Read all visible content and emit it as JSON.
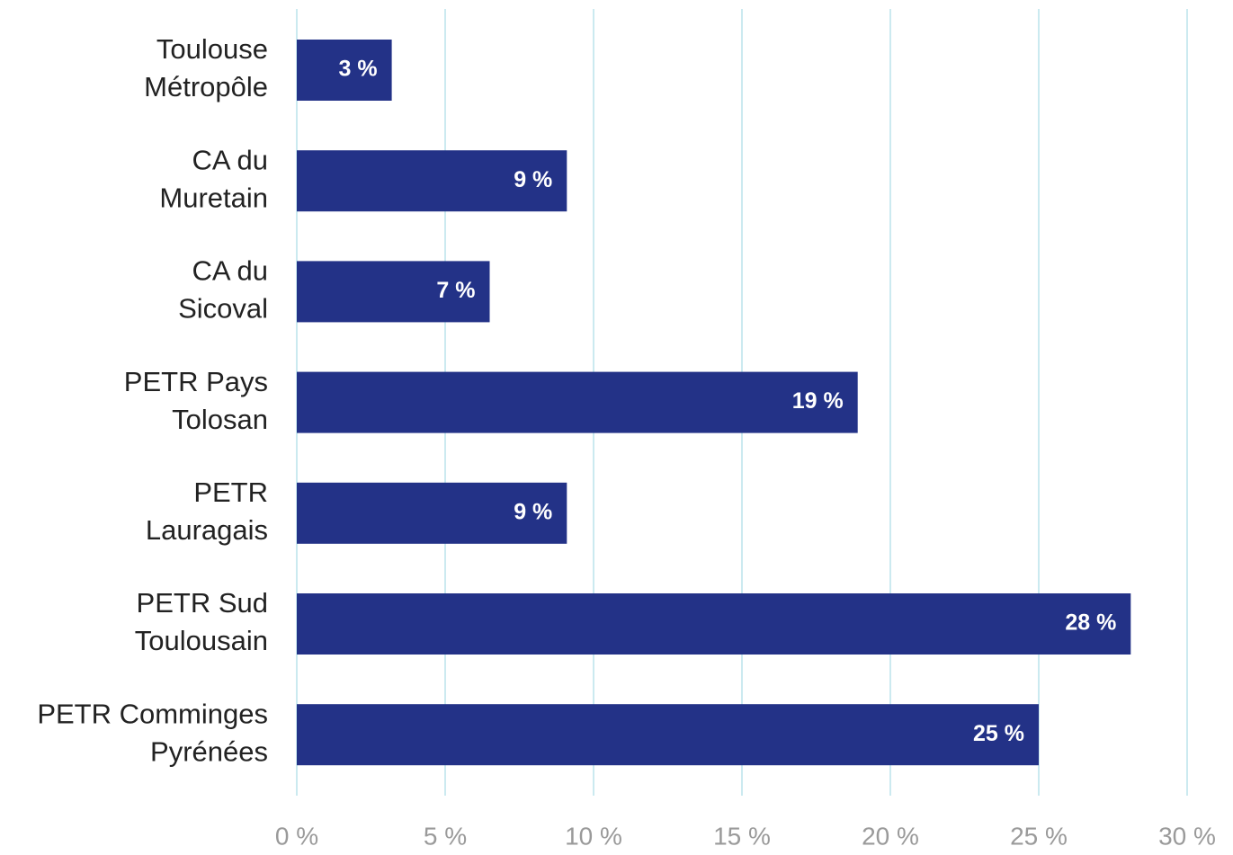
{
  "chart_data": {
    "type": "bar",
    "orientation": "horizontal",
    "categories": [
      [
        "Toulouse",
        "Métropôle"
      ],
      [
        "CA du",
        "Muretain"
      ],
      [
        "CA du",
        "Sicoval"
      ],
      [
        "PETR Pays",
        "Tolosan"
      ],
      [
        "PETR",
        "Lauragais"
      ],
      [
        "PETR Sud",
        "Toulousain"
      ],
      [
        "PETR Comminges",
        "Pyrénées"
      ]
    ],
    "values": [
      3.2,
      9.1,
      6.5,
      18.9,
      9.1,
      28.1,
      25.0
    ],
    "value_labels": [
      "3 %",
      "9 %",
      "7 %",
      "19 %",
      "9 %",
      "28 %",
      "25 %"
    ],
    "color": "#233287",
    "xlim": [
      0,
      30
    ],
    "xticks": [
      {
        "value": 0,
        "label": "0 %"
      },
      {
        "value": 5,
        "label": "5 %"
      },
      {
        "value": 10,
        "label": "10 %"
      },
      {
        "value": 15,
        "label": "15 %"
      },
      {
        "value": 20,
        "label": "20 %"
      },
      {
        "value": 25,
        "label": "25 %"
      },
      {
        "value": 30,
        "label": "30 %"
      }
    ],
    "grid": true
  }
}
